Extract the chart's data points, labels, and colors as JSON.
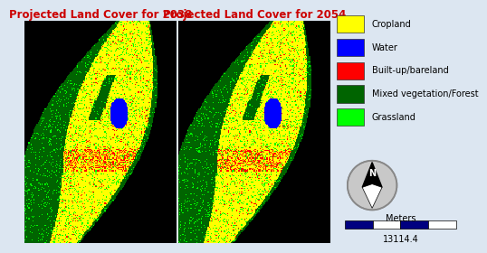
{
  "title_2038": "Projected Land Cover for 2038",
  "title_2054": "Projected Land Cover for 2054",
  "title_color": "#cc0000",
  "title_fontsize": 8.5,
  "background_color": "#dce6f1",
  "map_bg_color": "#000000",
  "legend_items": [
    {
      "label": "Cropland",
      "color": "#ffff00"
    },
    {
      "label": "Water",
      "color": "#0000ff"
    },
    {
      "label": "Built-up/bareland",
      "color": "#ff0000"
    },
    {
      "label": "Mixed vegetation/Forest",
      "color": "#006400"
    },
    {
      "label": "Grassland",
      "color": "#00ff00"
    }
  ],
  "legend_fontsize": 7,
  "scale_text": "Meters",
  "scale_value": "13114.4",
  "north_arrow_text": "N"
}
